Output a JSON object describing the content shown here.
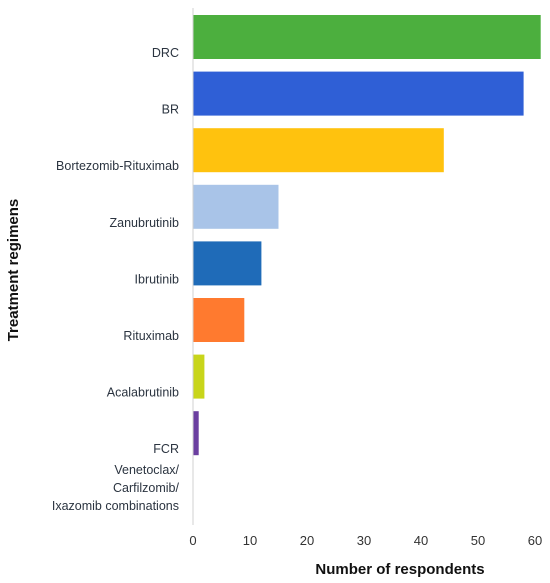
{
  "chart_data": {
    "type": "bar",
    "orientation": "horizontal",
    "title": "",
    "xlabel": "Number of respondents",
    "ylabel": "Treatment regimens",
    "xlim": [
      0,
      60
    ],
    "xticks": [
      "0",
      "10",
      "20",
      "30",
      "40",
      "50",
      "60"
    ],
    "grid": false,
    "categories": [
      [
        "DRC"
      ],
      [
        "BR"
      ],
      [
        "Bortezomib-Rituximab"
      ],
      [
        "Zanubrutinib"
      ],
      [
        "Ibrutinib"
      ],
      [
        "Rituximab"
      ],
      [
        "Acalabrutinib"
      ],
      [
        "FCR"
      ],
      [
        "Venetoclax/",
        "Carfilzomib/",
        "Ixazomib combinations"
      ]
    ],
    "values": [
      61,
      58,
      44,
      15,
      12,
      9,
      2,
      1,
      0
    ],
    "colors": [
      "#4caf3e",
      "#2f5fd6",
      "#ffc20e",
      "#a9c4e8",
      "#1f6bb8",
      "#ff7a2f",
      "#c8d51a",
      "#6b3fa0",
      "#8f8f8f"
    ]
  }
}
